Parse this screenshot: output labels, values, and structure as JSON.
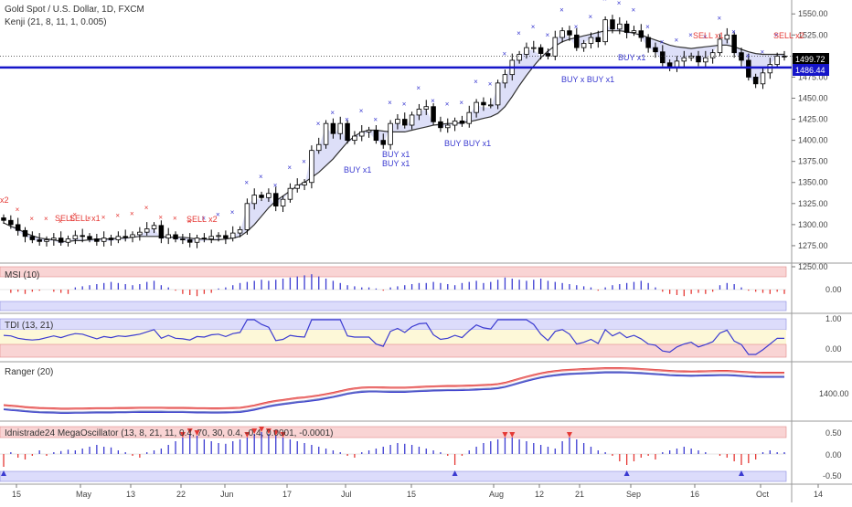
{
  "header": {
    "symbol": "Gold Spot / U.S. Dollar, 1D, FXCM",
    "indicator": "Kenji (21, 8, 11, 1, 0.005)"
  },
  "price_axis": {
    "ticks": [
      "1550.00",
      "1525.00",
      "1500.00",
      "1475.00",
      "1450.00",
      "1425.00",
      "1400.00",
      "1375.00",
      "1350.00",
      "1325.00",
      "1300.00",
      "1275.00",
      "1250.00"
    ],
    "current_price": "1499.72",
    "line_price": "1486.44",
    "current_color": "#000000",
    "line_color": "#1515c9"
  },
  "panes": {
    "msi": {
      "title": "MSI (10)",
      "tick": "0.00"
    },
    "tdi": {
      "title": "TDI (13, 21)",
      "ticks": [
        "1.00",
        "0.00"
      ]
    },
    "ranger": {
      "title": "Ranger (20)",
      "tick": "1400.00"
    },
    "mega": {
      "title": "Idnistrade24 MegaOscillator (13, 8, 21, 11, 0.4, 70, 30, 0.4, -0.4, 0.0001, -0.0001)",
      "ticks": [
        "0.50",
        "0.00",
        "-0.50"
      ]
    }
  },
  "x_axis": {
    "labels": [
      "15",
      "May",
      "13",
      "22",
      "Jun",
      "17",
      "Jul",
      "15",
      "Aug",
      "12",
      "21",
      "Sep",
      "16",
      "Oct",
      "14"
    ]
  },
  "signals": [
    {
      "text": "x2",
      "type": "sell"
    },
    {
      "text": "SELL",
      "type": "sell"
    },
    {
      "text": "SELL x1",
      "type": "sell"
    },
    {
      "text": "SELL x2",
      "type": "sell"
    },
    {
      "text": "BUY x1",
      "type": "buy"
    },
    {
      "text": "BUY x1",
      "type": "buy"
    },
    {
      "text": "BUY x1",
      "type": "buy"
    },
    {
      "text": "BUY BUY x1",
      "type": "buy"
    },
    {
      "text": "BUY x BUY x1",
      "type": "buy"
    },
    {
      "text": "BUY x1",
      "type": "buy"
    },
    {
      "text": "SELL x1",
      "type": "sell"
    },
    {
      "text": "SELL x2",
      "type": "sell"
    }
  ],
  "chart_data": {
    "type": "candlestick",
    "title": "Gold Spot / U.S. Dollar, 1D, FXCM",
    "ylim": [
      1250,
      1560
    ],
    "x_ticks": [
      "15",
      "May",
      "13",
      "22",
      "Jun",
      "17",
      "Jul",
      "15",
      "Aug",
      "12",
      "21",
      "Sep",
      "16",
      "Oct",
      "14"
    ],
    "series": [
      {
        "name": "Kenji (21, 8, 11, 1, 0.005)",
        "values": [
          1302,
          1298,
          1295,
          1290,
          1287,
          1284,
          1283,
          1282,
          1280,
          1280,
          1281,
          1281,
          1282,
          1283,
          1283,
          1283,
          1284,
          1284,
          1285,
          1286,
          1286,
          1286,
          1286,
          1285,
          1285,
          1285,
          1284,
          1283,
          1283,
          1282,
          1282,
          1283,
          1284,
          1286,
          1292,
          1300,
          1310,
          1320,
          1328,
          1334,
          1340,
          1346,
          1350,
          1356,
          1362,
          1370,
          1378,
          1388,
          1398,
          1405,
          1410,
          1412,
          1412,
          1411,
          1410,
          1410,
          1410,
          1412,
          1414,
          1416,
          1418,
          1419,
          1420,
          1420,
          1421,
          1422,
          1424,
          1426,
          1428,
          1432,
          1440,
          1452,
          1465,
          1477,
          1488,
          1498,
          1506,
          1512,
          1517,
          1520,
          1522,
          1524,
          1526,
          1528,
          1530,
          1530,
          1530,
          1529,
          1527,
          1525,
          1522,
          1519,
          1516,
          1513,
          1511,
          1510,
          1509,
          1510,
          1511,
          1512,
          1513,
          1513,
          1511,
          1508,
          1505,
          1503,
          1502,
          1502,
          1502,
          1502
        ]
      }
    ],
    "candles_close": [
      1305,
      1300,
      1293,
      1286,
      1282,
      1280,
      1282,
      1284,
      1279,
      1283,
      1287,
      1286,
      1283,
      1280,
      1284,
      1282,
      1286,
      1285,
      1288,
      1291,
      1295,
      1299,
      1284,
      1288,
      1283,
      1282,
      1279,
      1284,
      1283,
      1286,
      1287,
      1284,
      1290,
      1294,
      1325,
      1335,
      1332,
      1337,
      1322,
      1330,
      1343,
      1347,
      1350,
      1388,
      1395,
      1420,
      1408,
      1420,
      1400,
      1405,
      1410,
      1412,
      1400,
      1395,
      1420,
      1425,
      1418,
      1430,
      1437,
      1440,
      1422,
      1415,
      1418,
      1423,
      1420,
      1433,
      1445,
      1442,
      1442,
      1468,
      1478,
      1495,
      1502,
      1510,
      1510,
      1503,
      1500,
      1522,
      1530,
      1525,
      1510,
      1515,
      1522,
      1517,
      1543,
      1532,
      1538,
      1528,
      1530,
      1522,
      1510,
      1505,
      1492,
      1487,
      1494,
      1498,
      1500,
      1493,
      1498,
      1504,
      1520,
      1525,
      1504,
      1495,
      1475,
      1467,
      1480,
      1490,
      1500,
      1499.72
    ],
    "channel_price": 1486.44,
    "last_price": 1499.72,
    "msi_values": [
      0.0,
      -0.15,
      -0.1,
      -0.2,
      -0.1,
      -0.05,
      0.0,
      -0.1,
      -0.15,
      -0.2,
      0.1,
      0.15,
      0.2,
      0.25,
      0.3,
      0.35,
      0.3,
      0.25,
      0.2,
      0.25,
      0.35,
      0.4,
      0.2,
      0.1,
      -0.05,
      -0.2,
      -0.25,
      -0.3,
      -0.2,
      -0.15,
      0.05,
      0.1,
      0.2,
      0.3,
      0.35,
      0.4,
      0.45,
      0.4,
      0.45,
      0.5,
      0.55,
      0.6,
      0.65,
      0.7,
      0.6,
      0.5,
      0.4,
      0.3,
      0.2,
      0.15,
      0.1,
      0.1,
      0.05,
      -0.05,
      0.1,
      0.15,
      0.2,
      0.25,
      0.3,
      0.3,
      0.35,
      0.3,
      0.25,
      0.2,
      0.3,
      0.35,
      0.4,
      0.3,
      0.35,
      0.45,
      0.55,
      0.5,
      0.45,
      0.4,
      0.45,
      0.5,
      0.4,
      0.35,
      0.3,
      0.25,
      0.2,
      0.15,
      0.1,
      -0.05,
      0.1,
      0.2,
      0.25,
      0.3,
      0.35,
      0.4,
      0.3,
      0.1,
      -0.1,
      -0.2,
      -0.25,
      -0.3,
      -0.2,
      -0.15,
      -0.2,
      -0.1,
      0.2,
      0.3,
      0.25,
      0.1,
      -0.05,
      -0.1,
      -0.15,
      -0.2,
      -0.1,
      -0.2
    ],
    "mega_values": [
      -0.35,
      0.05,
      -0.1,
      -0.15,
      -0.05,
      0.1,
      -0.05,
      0.05,
      0.08,
      0.12,
      0.1,
      0.15,
      0.2,
      0.25,
      0.2,
      0.18,
      0.1,
      0.05,
      -0.05,
      -0.1,
      0.05,
      0.1,
      0.15,
      0.25,
      0.35,
      0.45,
      0.55,
      0.5,
      0.4,
      0.35,
      0.3,
      0.28,
      0.35,
      0.4,
      0.45,
      0.55,
      0.6,
      0.55,
      0.5,
      0.45,
      0.4,
      0.35,
      0.3,
      0.25,
      0.2,
      0.15,
      0.1,
      0.05,
      -0.05,
      -0.1,
      0.05,
      0.1,
      0.15,
      0.2,
      0.25,
      0.3,
      0.28,
      0.25,
      0.2,
      0.15,
      0.1,
      0.05,
      -0.05,
      -0.3,
      -0.05,
      0.1,
      0.2,
      0.3,
      0.35,
      0.4,
      0.45,
      0.45,
      0.4,
      0.35,
      0.3,
      0.25,
      0.2,
      0.15,
      0.35,
      0.45,
      0.4,
      0.3,
      0.2,
      0.1,
      0.05,
      -0.05,
      -0.2,
      -0.3,
      -0.2,
      -0.1,
      -0.05,
      -0.15,
      0.05,
      0.1,
      0.15,
      0.2,
      0.15,
      0.1,
      0.05,
      0.0,
      -0.05,
      -0.1,
      -0.2,
      -0.3,
      -0.25,
      -0.15,
      0.05,
      0.1,
      0.05,
      0.05
    ]
  }
}
